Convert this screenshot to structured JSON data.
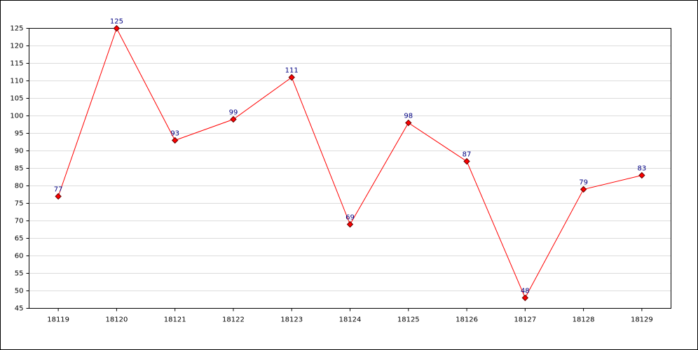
{
  "chart_data": {
    "type": "line",
    "categories": [
      "18119",
      "18120",
      "18121",
      "18122",
      "18123",
      "18124",
      "18125",
      "18126",
      "18127",
      "18128",
      "18129"
    ],
    "values": [
      77,
      125,
      93,
      99,
      111,
      69,
      98,
      87,
      48,
      79,
      83
    ],
    "color": "#ff0000",
    "ylim": [
      45,
      125
    ],
    "yticks": [
      45,
      50,
      55,
      60,
      65,
      70,
      75,
      80,
      85,
      90,
      95,
      100,
      105,
      110,
      115,
      120,
      125
    ],
    "grid": true
  }
}
